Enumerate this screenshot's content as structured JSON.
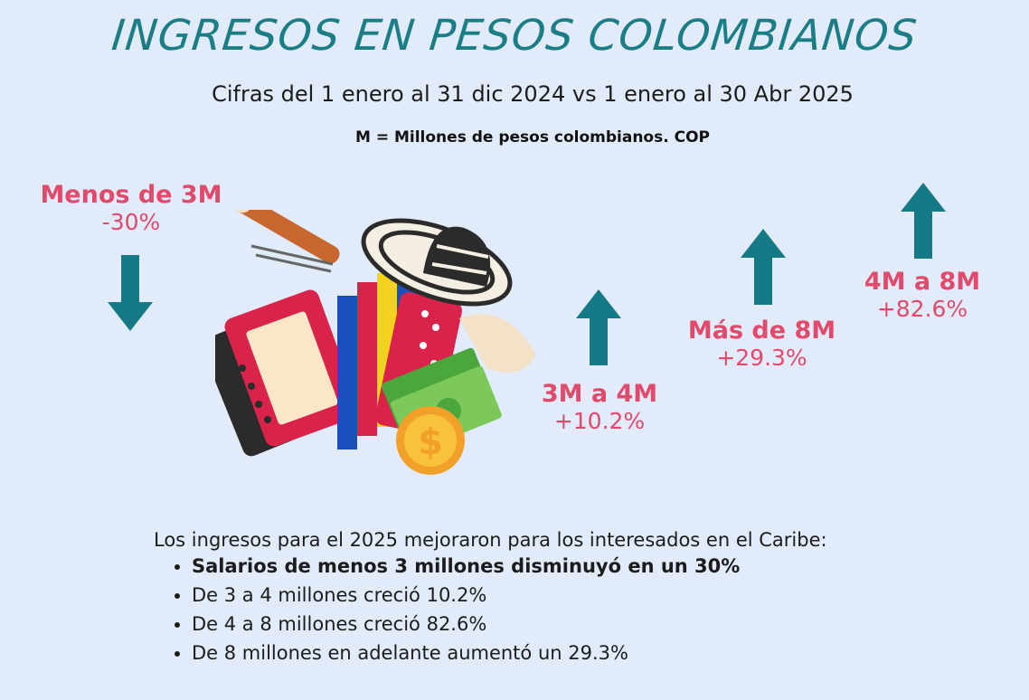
{
  "header": {
    "title": "INGRESOS EN PESOS COLOMBIANOS",
    "subtitle": "Cifras del 1 enero al 31 dic 2024 vs  1 enero al 30 Abr 2025",
    "note": "M = Millones de pesos colombianos. COP"
  },
  "stats": [
    {
      "label": "Menos de 3M",
      "pct": "-30%",
      "direction": "down"
    },
    {
      "label": "3M a 4M",
      "pct": "+10.2%",
      "direction": "up"
    },
    {
      "label": "Más de 8M",
      "pct": "+29.3%",
      "direction": "up"
    },
    {
      "label": "4M a 8M",
      "pct": "+82.6%",
      "direction": "up"
    }
  ],
  "summary": {
    "intro": "Los ingresos para el 2025 mejoraron para los interesados en el Caribe:",
    "bullets": [
      "Salarios de menos 3 millones disminuyó en un 30%",
      "De 3 a 4 millones creció 10.2%",
      "De 4 a 8 millones creció 82.6%",
      "De 8 millones en adelante aumentó un 29.3%"
    ]
  },
  "colors": {
    "title": "#1b7e86",
    "arrow": "#157a85",
    "stat_text": "#e2496b",
    "background": "#e1ebfa"
  },
  "illustration": {
    "icons": [
      "accordion-icon",
      "sombrero-vueltiao-icon",
      "banknotes-icon",
      "coin-icon",
      "guacharaca-icon"
    ],
    "coin_symbol": "$"
  }
}
